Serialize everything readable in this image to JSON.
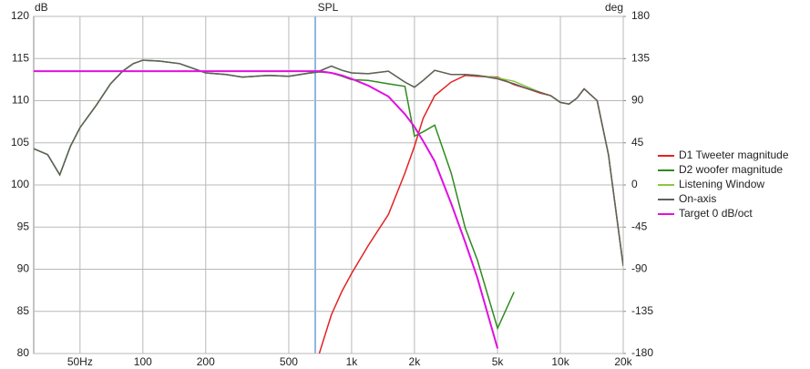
{
  "chart_data": {
    "type": "line",
    "title": "SPL",
    "y_label": "dB",
    "y2_label": "deg",
    "x_scale": "log",
    "grid": true,
    "legend_position": "right",
    "xlim": [
      30,
      20000
    ],
    "ylim": [
      80,
      120
    ],
    "y2lim": [
      -180,
      180
    ],
    "xticks": [
      {
        "value": 50,
        "label": "50Hz"
      },
      100,
      200,
      500,
      {
        "value": 1000,
        "label": "1k"
      },
      {
        "value": 2000,
        "label": "2k"
      },
      {
        "value": 5000,
        "label": "5k"
      },
      {
        "value": 10000,
        "label": "10k"
      },
      {
        "value": 20000,
        "label": "20k"
      }
    ],
    "yticks": [
      80,
      85,
      90,
      95,
      100,
      105,
      110,
      115,
      120
    ],
    "y2ticks": [
      -180,
      -135,
      -90,
      -45,
      0,
      45,
      90,
      135,
      180
    ],
    "x": [
      30,
      35,
      40,
      45,
      50,
      60,
      70,
      80,
      90,
      100,
      120,
      150,
      200,
      250,
      300,
      400,
      500,
      600,
      700,
      800,
      900,
      1000,
      1200,
      1500,
      1800,
      2000,
      2200,
      2500,
      3000,
      3500,
      4000,
      5000,
      6000,
      7000,
      8000,
      9000,
      10000,
      11000,
      12000,
      13000,
      15000,
      17000,
      20000
    ],
    "series": [
      {
        "name": "D1 Tweeter magnitude",
        "color": "#e32222",
        "values": [
          null,
          null,
          null,
          null,
          null,
          null,
          null,
          null,
          null,
          null,
          null,
          null,
          null,
          null,
          null,
          null,
          null,
          null,
          80,
          84.6,
          87.4,
          89.5,
          92.8,
          96.5,
          101.4,
          104.6,
          107.9,
          110.6,
          112.2,
          113,
          112.9,
          112.8,
          111.9,
          111.4,
          110.9,
          110.6,
          109.8,
          109.6,
          110.3,
          111.4,
          110,
          103.6,
          90.4
        ]
      },
      {
        "name": "D2 woofer magnitude",
        "color": "#2e8b1e",
        "values": [
          104.3,
          103.6,
          101.2,
          104.6,
          106.8,
          109.5,
          112,
          113.5,
          114.4,
          114.8,
          114.7,
          114.4,
          113.3,
          113.1,
          112.8,
          113,
          112.9,
          113.2,
          113.4,
          113.3,
          112.9,
          112.5,
          112.4,
          112,
          111.7,
          105.8,
          106.3,
          107.1,
          101.4,
          94.9,
          91.1,
          83,
          87.3,
          null,
          null,
          null,
          null,
          null,
          null,
          null,
          null,
          null,
          null
        ]
      },
      {
        "name": "Listening Window",
        "color": "#8cc63f",
        "values": [
          104.3,
          103.6,
          101.2,
          104.6,
          106.8,
          109.5,
          112,
          113.5,
          114.4,
          114.8,
          114.7,
          114.4,
          113.3,
          113.1,
          112.8,
          113,
          112.9,
          113.2,
          113.5,
          114.1,
          113.6,
          113.3,
          113.2,
          113.5,
          112.2,
          111.6,
          112.4,
          113.6,
          113.1,
          113.1,
          113,
          112.7,
          112.3,
          111.6,
          111,
          110.6,
          109.8,
          109.6,
          110.3,
          111.4,
          110,
          103.6,
          90.4
        ]
      },
      {
        "name": "On-axis",
        "color": "#5f5f5f",
        "values": [
          104.3,
          103.6,
          101.2,
          104.6,
          106.8,
          109.5,
          112,
          113.5,
          114.4,
          114.8,
          114.7,
          114.4,
          113.3,
          113.1,
          112.8,
          113,
          112.9,
          113.2,
          113.5,
          114.1,
          113.6,
          113.3,
          113.2,
          113.5,
          112.2,
          111.6,
          112.4,
          113.6,
          113.1,
          113.1,
          113,
          112.6,
          112,
          111.4,
          111,
          110.6,
          109.8,
          109.6,
          110.3,
          111.4,
          110,
          103.6,
          90.4
        ]
      },
      {
        "name": "Target 0 dB/oct",
        "color": "#e010e0",
        "values": [
          113.5,
          113.5,
          113.5,
          113.5,
          113.5,
          113.5,
          113.5,
          113.5,
          113.5,
          113.5,
          113.5,
          113.5,
          113.5,
          113.5,
          113.5,
          113.5,
          113.5,
          113.5,
          113.5,
          113.3,
          113,
          112.6,
          111.8,
          110.5,
          108.4,
          106.9,
          105.2,
          102.8,
          97.8,
          93.2,
          89,
          80.6,
          null,
          null,
          null,
          null,
          null,
          null,
          null,
          null,
          null,
          null,
          null
        ]
      }
    ]
  }
}
